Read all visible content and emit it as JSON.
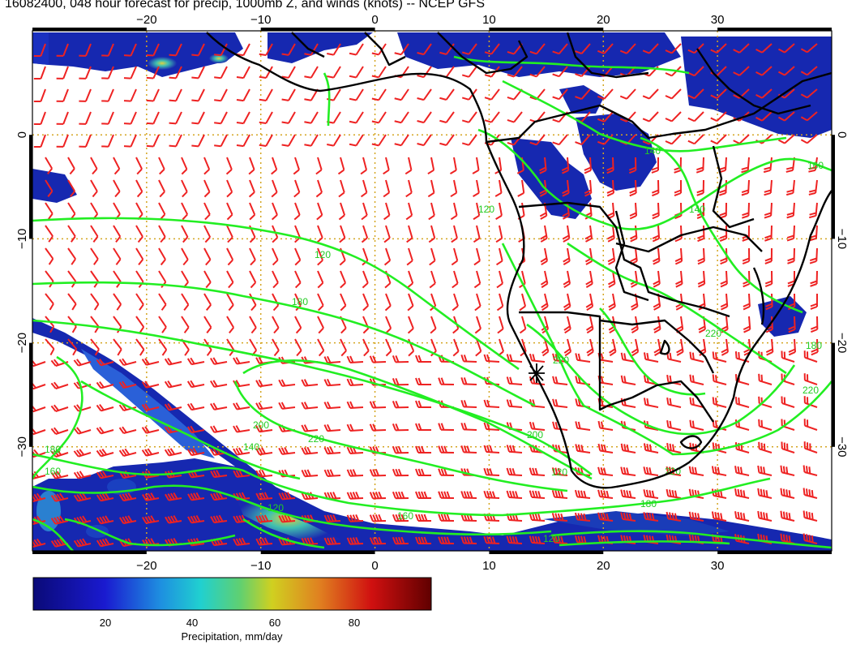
{
  "title": "16082400, 048 hour forecast for precip, 1000mb Z, and winds (knots) -- NCEP GFS",
  "map": {
    "lon_range": [
      -30,
      40
    ],
    "lat_range": [
      -40,
      10
    ],
    "lon_ticks": [
      -20,
      -10,
      0,
      10,
      20,
      30
    ],
    "lat_ticks": [
      0,
      -10,
      -20,
      -30
    ],
    "lon_tick_labels": [
      "−20",
      "−10",
      "0",
      "10",
      "20",
      "30"
    ],
    "lat_tick_labels": [
      "0",
      "−10",
      "−20",
      "−30"
    ],
    "grid": "dotted gold at 10° intervals",
    "geopotential_contour_labels": [
      "120",
      "140",
      "160",
      "180",
      "200",
      "220"
    ],
    "marker": {
      "lon": 14.5,
      "lat": -23,
      "symbol": "asterisk"
    }
  },
  "colorbar": {
    "label": "Precipitation, mm/day",
    "ticks": [
      "20",
      "40",
      "60",
      "80"
    ],
    "range": [
      0,
      100
    ]
  },
  "colors": {
    "precip_low": "#10108a",
    "precip_mid": "#20c0c0",
    "precip_high": "#e03010",
    "contours": "#22ee22",
    "barbs": "#ee2222",
    "coastline": "#000000",
    "grid": "#d4a520"
  }
}
